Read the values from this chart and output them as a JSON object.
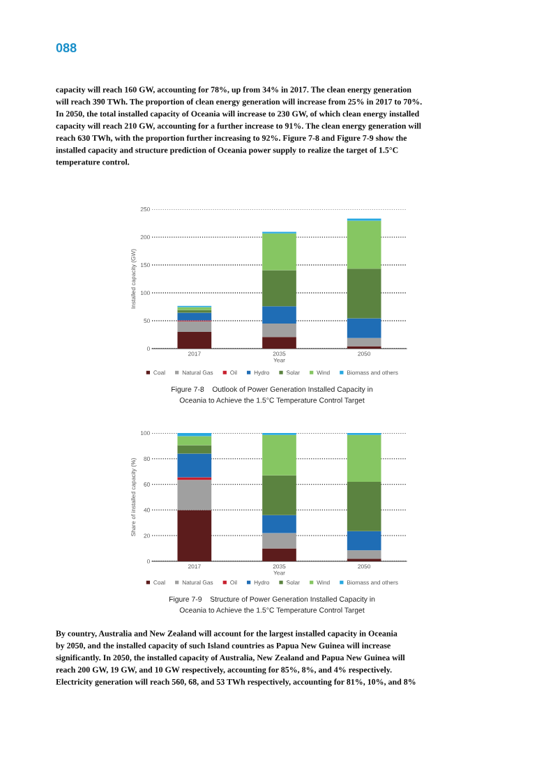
{
  "chart_data": [
    {
      "type": "bar",
      "title": "Figure 7-8    Outlook of Power Generation Installed Capacity in\nOceania to Achieve the 1.5°C Temperature Control Target",
      "xlabel": "Year",
      "ylabel": "Installed capacity (GW)",
      "categories": [
        "2017",
        "2035",
        "2050"
      ],
      "stacked": true,
      "ylim": [
        0,
        250
      ],
      "yticks": [
        0,
        50,
        100,
        150,
        200,
        250
      ],
      "grid": "y",
      "legend": "bottom",
      "series": [
        {
          "name": "Coal",
          "color": "#5c1c1c",
          "values": [
            30,
            21,
            4.5
          ]
        },
        {
          "name": "Natural Gas",
          "color": "#a0a0a0",
          "values": [
            19,
            24,
            14.5
          ]
        },
        {
          "name": "Oil",
          "color": "#c8202e",
          "values": [
            1.5,
            0,
            0
          ]
        },
        {
          "name": "Hydro",
          "color": "#1f6db5",
          "values": [
            14,
            31,
            35.5
          ]
        },
        {
          "name": "Solar",
          "color": "#5b8340",
          "values": [
            5,
            64.5,
            89
          ]
        },
        {
          "name": "Wind",
          "color": "#86c662",
          "values": [
            5,
            66,
            86
          ]
        },
        {
          "name": "Biomass and others",
          "color": "#28a8e0",
          "values": [
            2,
            3,
            3.5
          ]
        }
      ],
      "annotations": [
        "088",
        "capacity will reach 160 GW, accounting for 78%, up from 34% in 2017. The clean energy generation\nwill reach 390 TWh. The proportion of clean energy generation will increase from 25% in 2017 to 70%.\nIn 2050, the total installed capacity of Oceania will increase to 230 GW, of which clean energy installed\ncapacity will reach 210 GW, accounting for a further increase to 91%. The clean energy generation will\nreach 630 TWh, with the proportion further increasing to 92%. Figure 7-8 and Figure 7-9 show the\ninstalled capacity and structure prediction of Oceania power supply to realize the target of 1.5°C\ntemperature control."
      ]
    },
    {
      "type": "bar",
      "title": "Figure 7-9    Structure of Power Generation Installed Capacity in\nOceania to Achieve the 1.5°C Temperature Control Target",
      "xlabel": "Year",
      "ylabel": "Share of installed capacity (%)",
      "categories": [
        "2017",
        "2035",
        "2050"
      ],
      "stacked": true,
      "ylim": [
        0,
        100
      ],
      "yticks": [
        0,
        20,
        40,
        60,
        80,
        100
      ],
      "grid": "y",
      "legend": "bottom",
      "series": [
        {
          "name": "Coal",
          "color": "#5c1c1c",
          "values": [
            40,
            10,
            2
          ]
        },
        {
          "name": "Natural Gas",
          "color": "#a0a0a0",
          "values": [
            23.5,
            12,
            6.5
          ]
        },
        {
          "name": "Oil",
          "color": "#c8202e",
          "values": [
            2,
            0,
            0
          ]
        },
        {
          "name": "Hydro",
          "color": "#1f6db5",
          "values": [
            18.5,
            14,
            15
          ]
        },
        {
          "name": "Solar",
          "color": "#5b8340",
          "values": [
            6.5,
            31,
            38.5
          ]
        },
        {
          "name": "Wind",
          "color": "#86c662",
          "values": [
            7,
            31.5,
            36.5
          ]
        },
        {
          "name": "Biomass and others",
          "color": "#28a8e0",
          "values": [
            2.5,
            1.5,
            1.5
          ]
        }
      ],
      "annotations": [
        "By country, Australia and New Zealand will account for the largest installed capacity in Oceania\nby 2050, and the installed capacity of such Island countries as Papua New Guinea will increase\nsignificantly. In 2050, the installed capacity of Australia, New Zealand and Papua New Guinea will\nreach 200 GW, 19 GW, and 10 GW respectively, accounting for 85%, 8%, and 4% respectively.\nElectricity generation will reach 560, 68, and 53 TWh respectively, accounting for 81%, 10%, and 8%"
      ]
    }
  ]
}
